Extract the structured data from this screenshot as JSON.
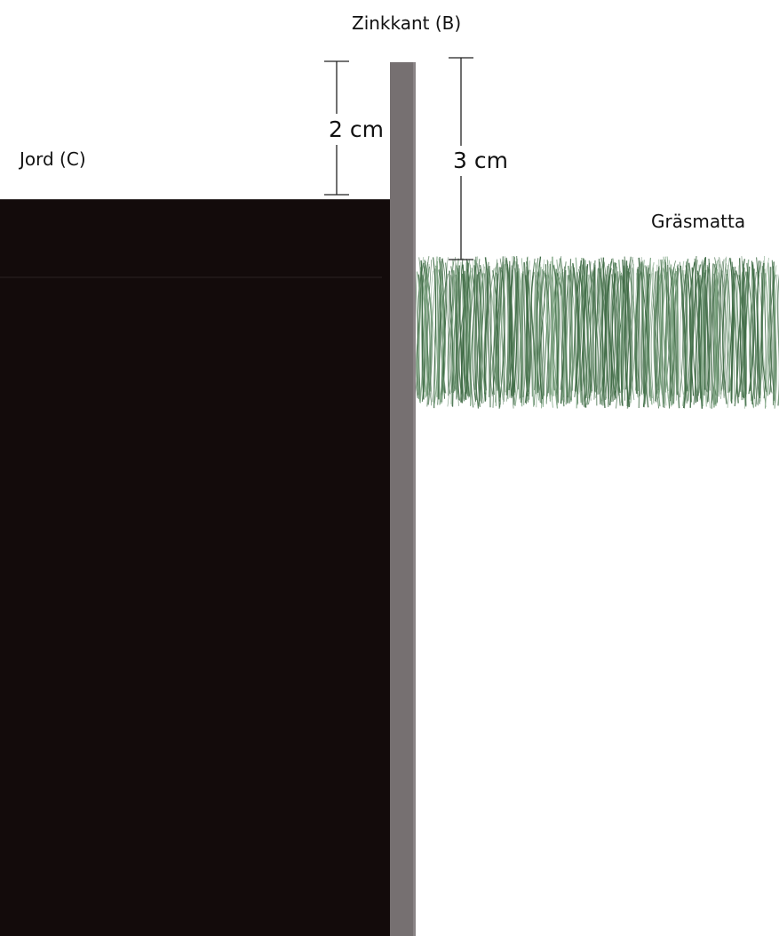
{
  "labels": {
    "edging": "Zinkkant (B)",
    "soil": "Jord (C)",
    "lawn": "Gräsmatta"
  },
  "measurements": {
    "left": "2 cm",
    "right": "3 cm"
  },
  "colors": {
    "soil": "#130b0b",
    "edging": "#767071",
    "grass_dark": "#3f6b45",
    "grass_light": "#7ea583",
    "background": "#ffffff"
  }
}
